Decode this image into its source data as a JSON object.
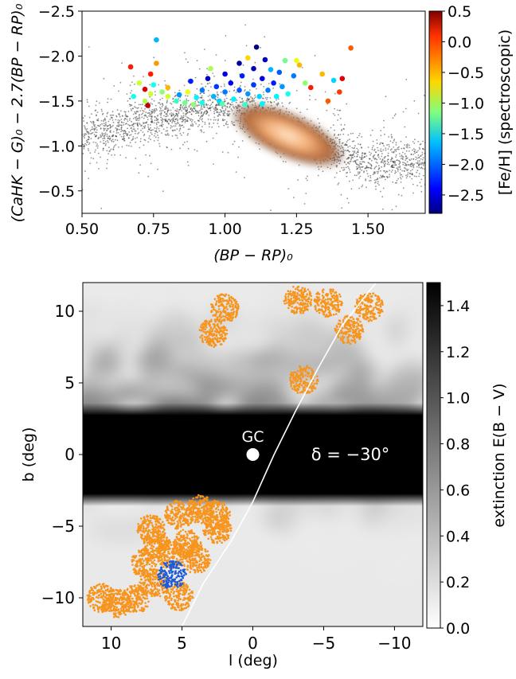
{
  "chart_data": [
    {
      "type": "scatter",
      "xlabel": "(BP − RP)₀",
      "ylabel": "(CaHK − G)₀ − 2.7(BP − RP)₀",
      "xlim": [
        0.5,
        1.7
      ],
      "ylim": [
        -0.25,
        -2.5
      ],
      "y_axis_inverted": true,
      "xticks": [
        "0.50",
        "0.75",
        "1.00",
        "1.25",
        "1.50"
      ],
      "yticks": [
        "−2.5",
        "−2.0",
        "−1.5",
        "−1.0",
        "−0.5"
      ],
      "background_stars": {
        "description_color": "grey density with copper core",
        "core_center": [
          1.22,
          -1.12
        ],
        "ridge": [
          [
            0.5,
            -1.12
          ],
          [
            0.7,
            -1.25
          ],
          [
            0.95,
            -1.42
          ],
          [
            1.1,
            -1.4
          ],
          [
            1.3,
            -1.05
          ],
          [
            1.5,
            -0.82
          ],
          [
            1.7,
            -0.82
          ]
        ]
      },
      "spectroscopic_stars": [
        [
          0.67,
          -1.88,
          0.0
        ],
        [
          0.68,
          -1.55,
          -1.5
        ],
        [
          0.7,
          -1.7,
          -0.9
        ],
        [
          0.72,
          -1.63,
          0.2
        ],
        [
          0.72,
          -1.5,
          -1.0
        ],
        [
          0.73,
          -1.45,
          0.3
        ],
        [
          0.74,
          -1.58,
          -0.9
        ],
        [
          0.74,
          -1.8,
          0.0
        ],
        [
          0.75,
          -1.68,
          -1.5
        ],
        [
          0.76,
          -2.18,
          -1.8
        ],
        [
          0.76,
          -1.92,
          -0.4
        ],
        [
          0.78,
          -1.6,
          -1.1
        ],
        [
          0.8,
          -1.55,
          -0.9
        ],
        [
          0.8,
          -1.65,
          -0.5
        ],
        [
          0.83,
          -1.5,
          -1.4
        ],
        [
          0.84,
          -1.57,
          -1.9
        ],
        [
          0.86,
          -1.48,
          -1.2
        ],
        [
          0.87,
          -1.6,
          -0.8
        ],
        [
          0.88,
          -1.72,
          -2.3
        ],
        [
          0.9,
          -1.54,
          -1.6
        ],
        [
          0.92,
          -1.62,
          -2.0
        ],
        [
          0.92,
          -1.48,
          -1.5
        ],
        [
          0.94,
          -1.75,
          -2.6
        ],
        [
          0.95,
          -1.86,
          -1.0
        ],
        [
          0.96,
          -1.55,
          -1.8
        ],
        [
          0.97,
          -1.66,
          -2.2
        ],
        [
          0.98,
          -1.5,
          -1.7
        ],
        [
          1.0,
          -1.8,
          -2.5
        ],
        [
          1.0,
          -1.6,
          -2.0
        ],
        [
          1.02,
          -1.7,
          -2.4
        ],
        [
          1.03,
          -1.52,
          -1.6
        ],
        [
          1.05,
          -1.92,
          -2.7
        ],
        [
          1.05,
          -1.62,
          -2.1
        ],
        [
          1.06,
          -1.78,
          -2.3
        ],
        [
          1.08,
          -1.98,
          -0.6
        ],
        [
          1.08,
          -1.58,
          -1.9
        ],
        [
          1.1,
          -1.86,
          -2.6
        ],
        [
          1.1,
          -1.68,
          -2.2
        ],
        [
          1.11,
          -2.1,
          -2.8
        ],
        [
          1.12,
          -1.55,
          -1.7
        ],
        [
          1.13,
          -1.75,
          -2.5
        ],
        [
          1.14,
          -1.96,
          -2.6
        ],
        [
          1.15,
          -1.62,
          -2.0
        ],
        [
          1.16,
          -1.85,
          -1.8
        ],
        [
          1.17,
          -1.7,
          -2.3
        ],
        [
          1.18,
          -1.55,
          -1.6
        ],
        [
          1.19,
          -1.82,
          -2.1
        ],
        [
          1.2,
          -1.66,
          -1.9
        ],
        [
          1.21,
          -1.95,
          -1.2
        ],
        [
          1.22,
          -1.58,
          -1.5
        ],
        [
          1.24,
          -1.78,
          -2.0
        ],
        [
          1.26,
          -1.9,
          -0.5
        ],
        [
          1.28,
          -1.7,
          -1.1
        ],
        [
          1.3,
          -1.65,
          0.0
        ],
        [
          1.34,
          -1.8,
          -0.5
        ],
        [
          1.36,
          -1.5,
          -0.2
        ],
        [
          1.38,
          -1.73,
          -1.7
        ],
        [
          1.4,
          -1.6,
          -0.1
        ],
        [
          1.41,
          -1.75,
          0.2
        ],
        [
          1.44,
          -2.09,
          -0.2
        ],
        [
          1.25,
          -1.95,
          -0.8
        ],
        [
          0.99,
          -1.47,
          -1.3
        ],
        [
          1.07,
          -1.46,
          -1.4
        ],
        [
          0.89,
          -1.46,
          -1.1
        ],
        [
          1.13,
          -1.47,
          -1.6
        ]
      ],
      "colorbar": {
        "label": "[Fe/H] (spectroscopic)",
        "range": [
          -2.8,
          0.5
        ],
        "colormap": "jet",
        "ticks": [
          "0.5",
          "0.0",
          "−0.5",
          "−1.0",
          "−1.5",
          "−2.0",
          "−2.5"
        ]
      },
      "grid": false
    },
    {
      "type": "heatmap",
      "xlabel": "l (deg)",
      "ylabel": "b (deg)",
      "xlim": [
        12,
        -12
      ],
      "ylim": [
        -12,
        12
      ],
      "xticks": [
        "10",
        "5",
        "0",
        "−5",
        "−10"
      ],
      "yticks": [
        "10",
        "5",
        "0",
        "−5",
        "−10"
      ],
      "extinction_map": {
        "description": "E(B−V) saturated (black) band |b| < ~3, patchy grey clouds above, pale below"
      },
      "markers": [
        {
          "label": "GC",
          "l": 0,
          "b": 0
        }
      ],
      "annotation": "δ = −30°",
      "declination_line": [
        [
          5,
          -12
        ],
        [
          3.5,
          -9
        ],
        [
          1.5,
          -6
        ],
        [
          0,
          -3.3
        ],
        [
          -1.5,
          0
        ],
        [
          -3,
          3
        ],
        [
          -4.6,
          6
        ],
        [
          -6.3,
          9
        ],
        [
          -8.7,
          12
        ]
      ],
      "fields": {
        "orange": [
          [
            10.7,
            -10
          ],
          [
            9.6,
            -10.4
          ],
          [
            8.3,
            -10.1
          ],
          [
            7.0,
            -9.0
          ],
          [
            7.6,
            -7.6
          ],
          [
            6.8,
            -6.3
          ],
          [
            7.2,
            -5.2
          ],
          [
            5.2,
            -4.2
          ],
          [
            3.7,
            -3.8
          ],
          [
            2.6,
            -4.2
          ],
          [
            2.5,
            -5.2
          ],
          [
            4.6,
            -6.2
          ],
          [
            4.0,
            -7.3
          ],
          [
            5.2,
            -9.9
          ],
          [
            5.8,
            -7.0
          ],
          [
            2.0,
            10.2
          ],
          [
            2.8,
            8.5
          ],
          [
            -3.6,
            5.2
          ],
          [
            -3.2,
            10.8
          ],
          [
            -5.3,
            10.6
          ],
          [
            -6.8,
            8.7
          ],
          [
            -8.2,
            10.3
          ]
        ],
        "blue": [
          [
            5.7,
            -8.4
          ]
        ]
      },
      "colorbar": {
        "label": "extinction E(B − V)",
        "range": [
          0.0,
          1.5
        ],
        "colormap": "grey",
        "ticks": [
          "1.4",
          "1.2",
          "1.0",
          "0.8",
          "0.6",
          "0.4",
          "0.2",
          "0.0"
        ]
      },
      "colors": {
        "orange": "#f7941d",
        "blue": "#1e5bd9",
        "declination_line": "#ffffff"
      },
      "grid": false
    }
  ]
}
